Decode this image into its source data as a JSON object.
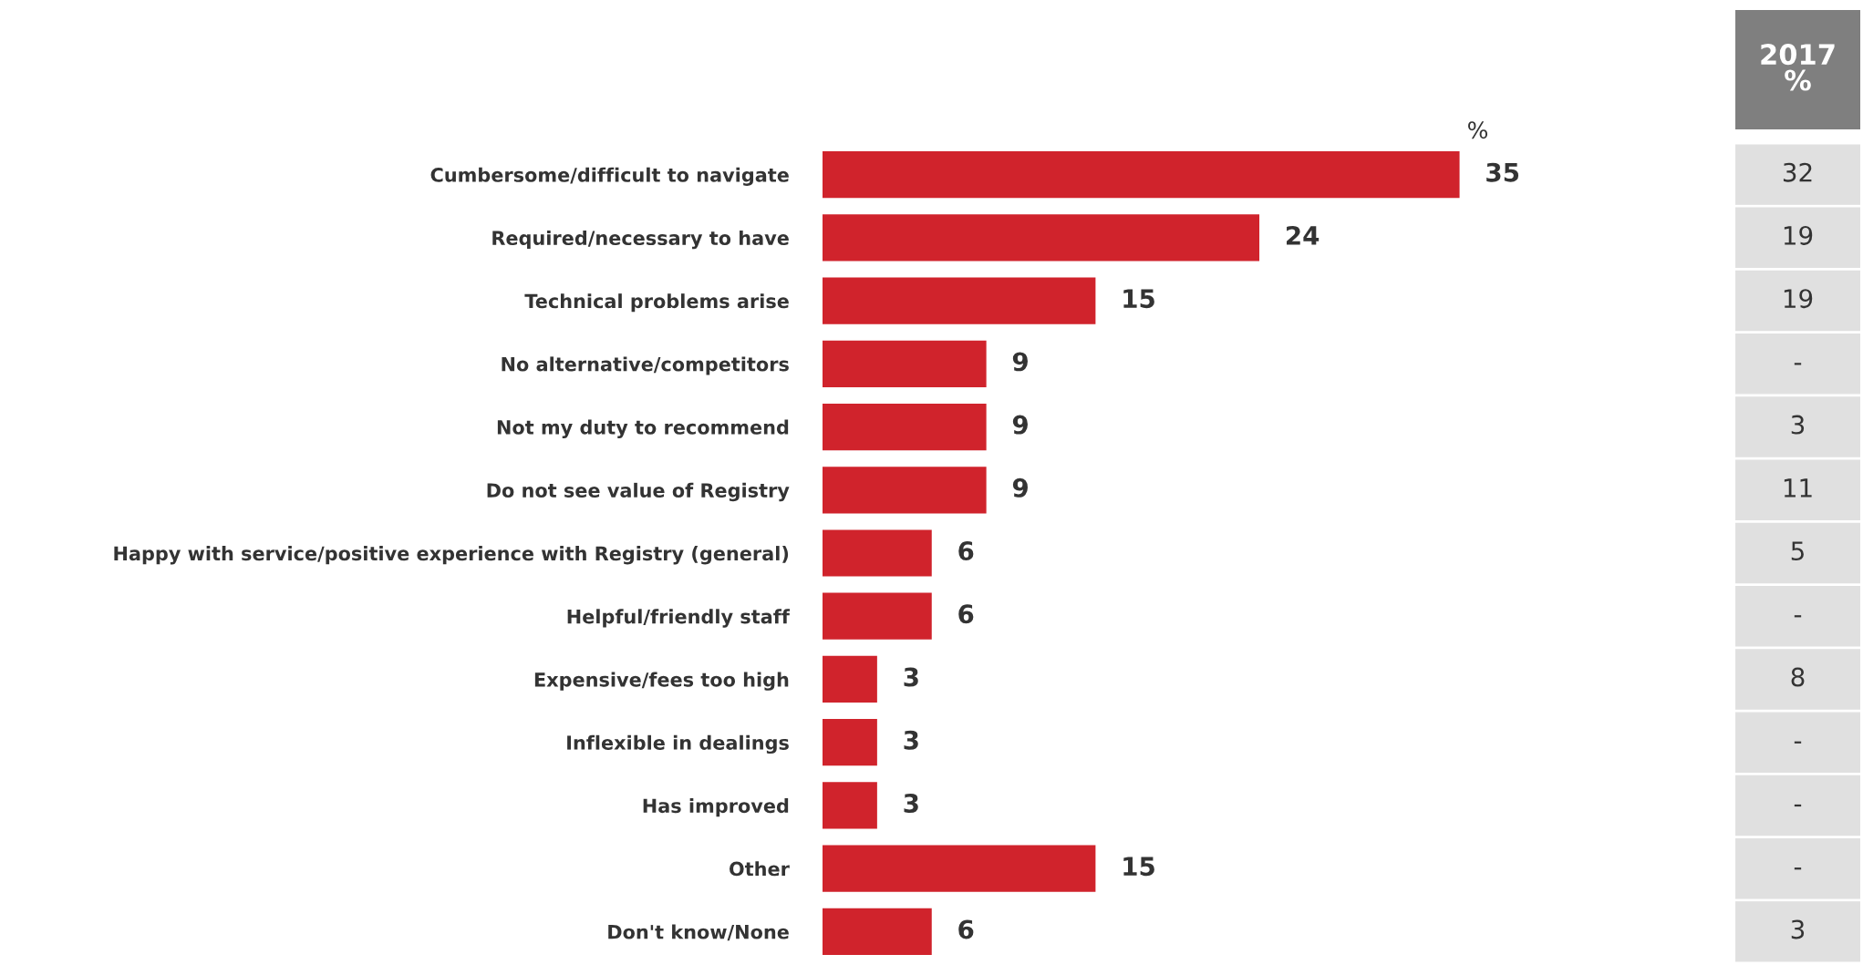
{
  "chart_data": {
    "type": "bar",
    "orientation": "horizontal",
    "data_labels": true,
    "categories": [
      "Cumbersome/difficult to navigate",
      "Required/necessary to have",
      "Technical problems arise",
      "No alternative/competitors",
      "Not my duty to recommend",
      "Do not see value of Registry",
      "Happy with service/positive experience with Registry (general)",
      "Helpful/friendly staff",
      "Expensive/fees too high",
      "Inflexible in dealings",
      "Has improved",
      "Other",
      "Don't know/None"
    ],
    "values": [
      35,
      24,
      15,
      9,
      9,
      9,
      6,
      6,
      3,
      3,
      3,
      15,
      6
    ],
    "color": "#d0232c",
    "annotations": [
      "%",
      "2017\n%",
      "32",
      "19",
      "19",
      "-",
      "3",
      "11",
      "5",
      "-",
      "8",
      "-",
      "-",
      "-",
      "3"
    ]
  }
}
